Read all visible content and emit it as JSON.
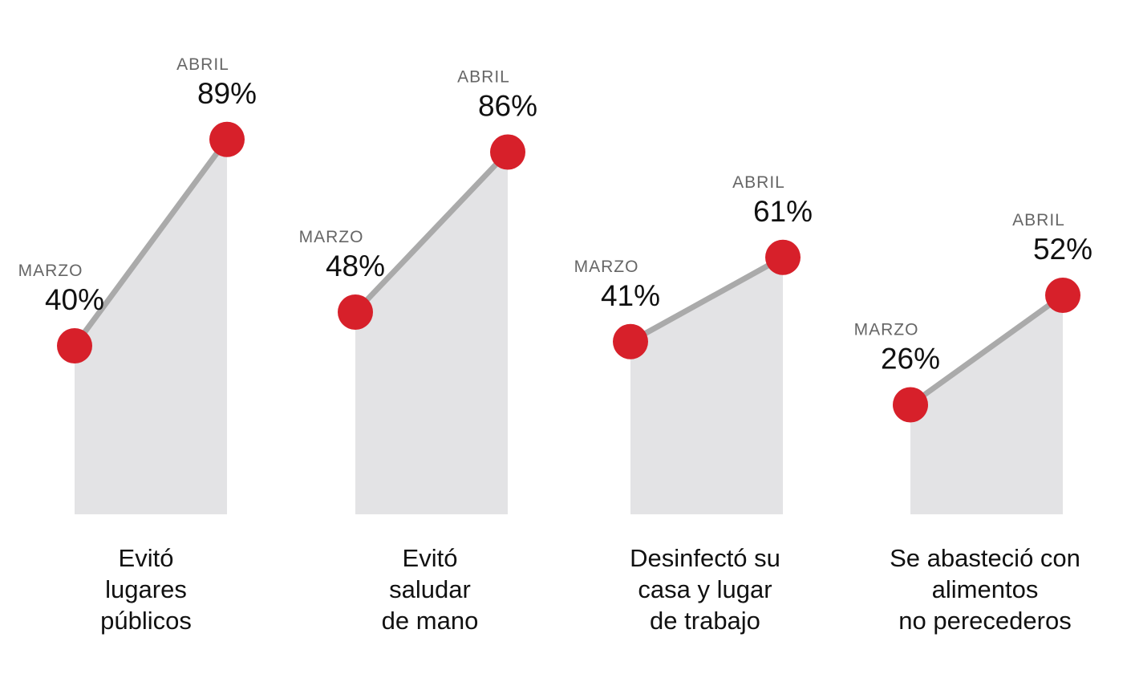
{
  "chart_data": {
    "type": "line",
    "series_x": [
      "MARZO",
      "ABRIL"
    ],
    "ylim": [
      0,
      100
    ],
    "grid": false,
    "colors": {
      "point": "#d7202a",
      "line": "#aaaaaa",
      "area": "#e3e3e5"
    },
    "panels": [
      {
        "title_lines": [
          "Evitó",
          "lugares",
          "públicos"
        ],
        "points": [
          {
            "x": "MARZO",
            "y": 40,
            "label": "40%"
          },
          {
            "x": "ABRIL",
            "y": 89,
            "label": "89%"
          }
        ]
      },
      {
        "title_lines": [
          "Evitó",
          "saludar",
          "de mano"
        ],
        "points": [
          {
            "x": "MARZO",
            "y": 48,
            "label": "48%"
          },
          {
            "x": "ABRIL",
            "y": 86,
            "label": "86%"
          }
        ]
      },
      {
        "title_lines": [
          "Desinfectó su",
          "casa y lugar",
          "de trabajo"
        ],
        "points": [
          {
            "x": "MARZO",
            "y": 41,
            "label": "41%"
          },
          {
            "x": "ABRIL",
            "y": 61,
            "label": "61%"
          }
        ]
      },
      {
        "title_lines": [
          "Se abasteció con",
          "alimentos",
          "no perecederos"
        ],
        "points": [
          {
            "x": "MARZO",
            "y": 26,
            "label": "26%"
          },
          {
            "x": "ABRIL",
            "y": 52,
            "label": "52%"
          }
        ]
      }
    ]
  }
}
